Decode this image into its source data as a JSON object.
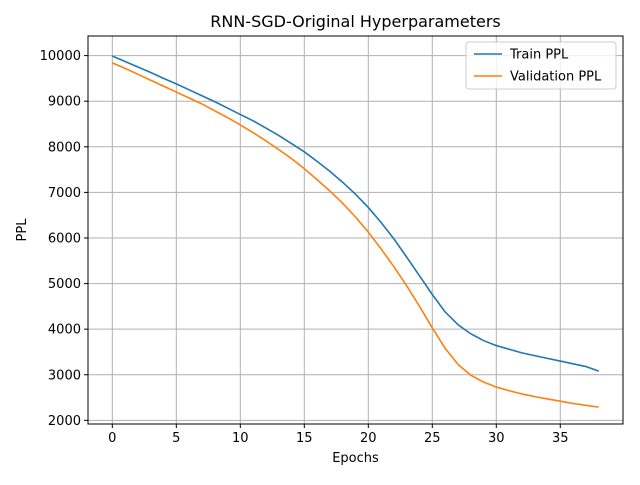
{
  "chart_data": {
    "type": "line",
    "title": "RNN-SGD-Original Hyperparameters",
    "xlabel": "Epochs",
    "ylabel": "PPL",
    "xlim": [
      -1.9,
      39.9
    ],
    "ylim": [
      1920,
      10430
    ],
    "xticks": [
      0,
      5,
      10,
      15,
      20,
      25,
      30,
      35
    ],
    "yticks": [
      2000,
      3000,
      4000,
      5000,
      6000,
      7000,
      8000,
      9000,
      10000
    ],
    "grid": true,
    "legend_position": "top-right",
    "x": [
      0,
      1,
      2,
      3,
      4,
      5,
      6,
      7,
      8,
      9,
      10,
      11,
      12,
      13,
      14,
      15,
      16,
      17,
      18,
      19,
      20,
      21,
      22,
      23,
      24,
      25,
      26,
      27,
      28,
      29,
      30,
      31,
      32,
      33,
      34,
      35,
      36,
      37,
      38
    ],
    "series": [
      {
        "name": "Train PPL",
        "color": "#1f77b4",
        "values": [
          9990,
          9870,
          9750,
          9630,
          9500,
          9380,
          9250,
          9120,
          8990,
          8850,
          8710,
          8570,
          8410,
          8250,
          8070,
          7890,
          7680,
          7460,
          7220,
          6960,
          6670,
          6340,
          5980,
          5580,
          5170,
          4760,
          4380,
          4100,
          3900,
          3750,
          3640,
          3560,
          3480,
          3420,
          3360,
          3300,
          3240,
          3180,
          3080
        ]
      },
      {
        "name": "Validation PPL",
        "color": "#ff7f0e",
        "values": [
          9840,
          9720,
          9590,
          9460,
          9330,
          9200,
          9070,
          8940,
          8790,
          8640,
          8480,
          8310,
          8130,
          7940,
          7740,
          7520,
          7280,
          7030,
          6760,
          6460,
          6130,
          5760,
          5370,
          4950,
          4500,
          4030,
          3580,
          3230,
          2990,
          2840,
          2730,
          2650,
          2580,
          2520,
          2470,
          2420,
          2370,
          2330,
          2290
        ]
      }
    ]
  }
}
